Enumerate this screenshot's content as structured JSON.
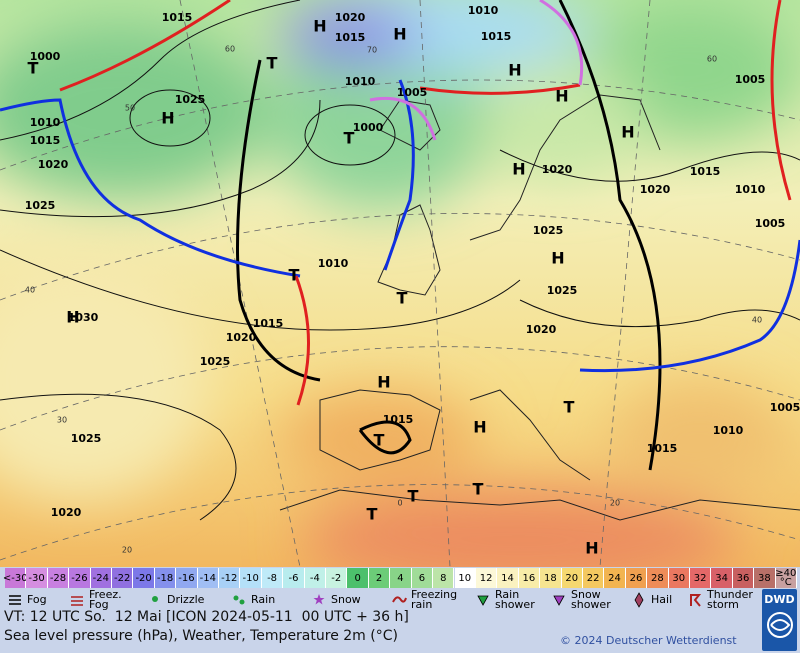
{
  "map": {
    "pressure_labels": [
      "1015",
      "1020",
      "1015",
      "1010",
      "1015",
      "1000",
      "1025",
      "1010",
      "1005",
      "1000",
      "1010",
      "1015",
      "1020",
      "1025",
      "1020",
      "1020",
      "1015",
      "1010",
      "1005",
      "1005",
      "1025",
      "1010",
      "1025",
      "1015",
      "1020",
      "1020",
      "1030",
      "1025",
      "1015",
      "1025",
      "1010",
      "1015",
      "1005",
      "1020"
    ],
    "highs": [
      "H",
      "H",
      "H",
      "H",
      "H",
      "H",
      "H",
      "H",
      "H",
      "H",
      "H",
      "H"
    ],
    "lows": [
      "T",
      "T",
      "T",
      "T",
      "T",
      "T",
      "T",
      "T",
      "T",
      "T"
    ],
    "temperature_labels": [
      "60",
      "50",
      "40",
      "30",
      "20",
      "70",
      "60",
      "40",
      "20",
      "0"
    ]
  },
  "legend": {
    "scale": [
      "<-30",
      -30,
      -28,
      -26,
      -24,
      -22,
      -20,
      -18,
      -16,
      -14,
      -12,
      -10,
      -8,
      -6,
      -4,
      -2,
      0,
      2,
      4,
      6,
      8,
      10,
      12,
      14,
      16,
      18,
      20,
      22,
      24,
      26,
      28,
      30,
      32,
      34,
      36,
      38,
      "≥40 °C"
    ],
    "weather": [
      "Fog",
      "Freez. Fog",
      "Drizzle",
      "Rain",
      "Snow",
      "Freezing rain",
      "Rain shower",
      "Snow shower",
      "Hail",
      "Thunder storm"
    ]
  },
  "footer": {
    "valid_time": "VT: 12 UTC So.  12 Mai [ICON 2024-05-11  00 UTC + 36 h]",
    "description": "Sea level pressure (hPa), Weather, Temperature 2m (°C)",
    "copyright": "© 2024 Deutscher Wetterdienst",
    "logo": "DWD"
  }
}
